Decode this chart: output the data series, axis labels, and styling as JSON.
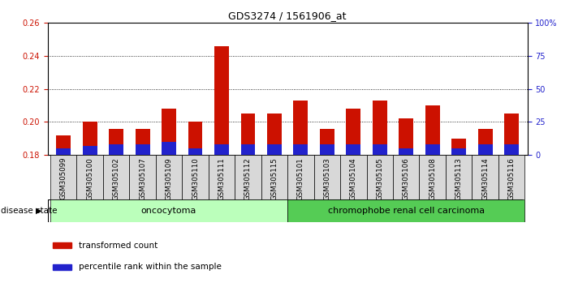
{
  "title": "GDS3274 / 1561906_at",
  "samples": [
    "GSM305099",
    "GSM305100",
    "GSM305102",
    "GSM305107",
    "GSM305109",
    "GSM305110",
    "GSM305111",
    "GSM305112",
    "GSM305115",
    "GSM305101",
    "GSM305103",
    "GSM305104",
    "GSM305105",
    "GSM305106",
    "GSM305108",
    "GSM305113",
    "GSM305114",
    "GSM305116"
  ],
  "transformed_count": [
    0.192,
    0.2,
    0.196,
    0.196,
    0.208,
    0.2,
    0.246,
    0.205,
    0.205,
    0.213,
    0.196,
    0.208,
    0.213,
    0.202,
    0.21,
    0.19,
    0.196,
    0.205
  ],
  "percentile_rank_pct": [
    5,
    7,
    8,
    8,
    10,
    5,
    8,
    8,
    8,
    8,
    8,
    8,
    8,
    5,
    8,
    5,
    8,
    8
  ],
  "ymin": 0.18,
  "ymax": 0.26,
  "yticks": [
    0.18,
    0.2,
    0.22,
    0.24,
    0.26
  ],
  "right_yticks": [
    0,
    25,
    50,
    75,
    100
  ],
  "disease_groups": [
    {
      "label": "oncocytoma",
      "start": 0,
      "end": 9
    },
    {
      "label": "chromophobe renal cell carcinoma",
      "start": 9,
      "end": 18
    }
  ],
  "group_colors": [
    "#BBFFBB",
    "#55CC55"
  ],
  "bar_color_red": "#CC1100",
  "bar_color_blue": "#2222CC",
  "background_color": "#FFFFFF",
  "tick_label_color_left": "#CC1100",
  "tick_label_color_right": "#2222CC",
  "bar_width": 0.55,
  "legend_items": [
    {
      "label": "transformed count",
      "color": "#CC1100"
    },
    {
      "label": "percentile rank within the sample",
      "color": "#2222CC"
    }
  ]
}
